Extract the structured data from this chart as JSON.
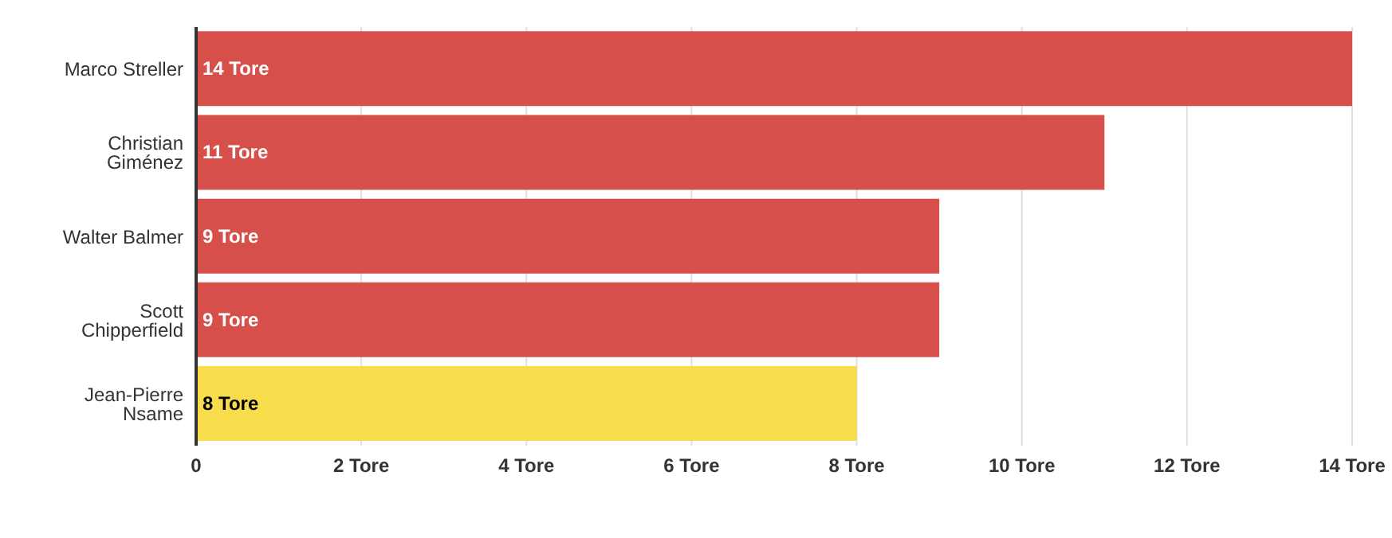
{
  "chart_data": {
    "type": "bar",
    "orientation": "horizontal",
    "categories": [
      "Marco Streller",
      "Christian Giménez",
      "Walter Balmer",
      "Scott Chipperfield",
      "Jean-Pierre Nsame"
    ],
    "values": [
      14,
      11,
      9,
      9,
      8
    ],
    "colors": [
      "#d64f4a",
      "#d64f4a",
      "#d64f4a",
      "#d64f4a",
      "#f7dc4b"
    ],
    "value_labels": [
      "14 Tore",
      "11 Tore",
      "9 Tore",
      "9 Tore",
      "8 Tore"
    ],
    "xlim": [
      0,
      14
    ],
    "xticks": [
      0,
      {
        "value": 2,
        "label": "2 Tore"
      },
      {
        "value": 4,
        "label": "4 Tore"
      },
      {
        "value": 6,
        "label": "6 Tore"
      },
      {
        "value": 8,
        "label": "8 Tore"
      },
      {
        "value": 10,
        "label": "10 Tore"
      },
      {
        "value": 12,
        "label": "12 Tore"
      },
      {
        "value": 14,
        "label": "14 Tore"
      }
    ],
    "grid": "x"
  }
}
